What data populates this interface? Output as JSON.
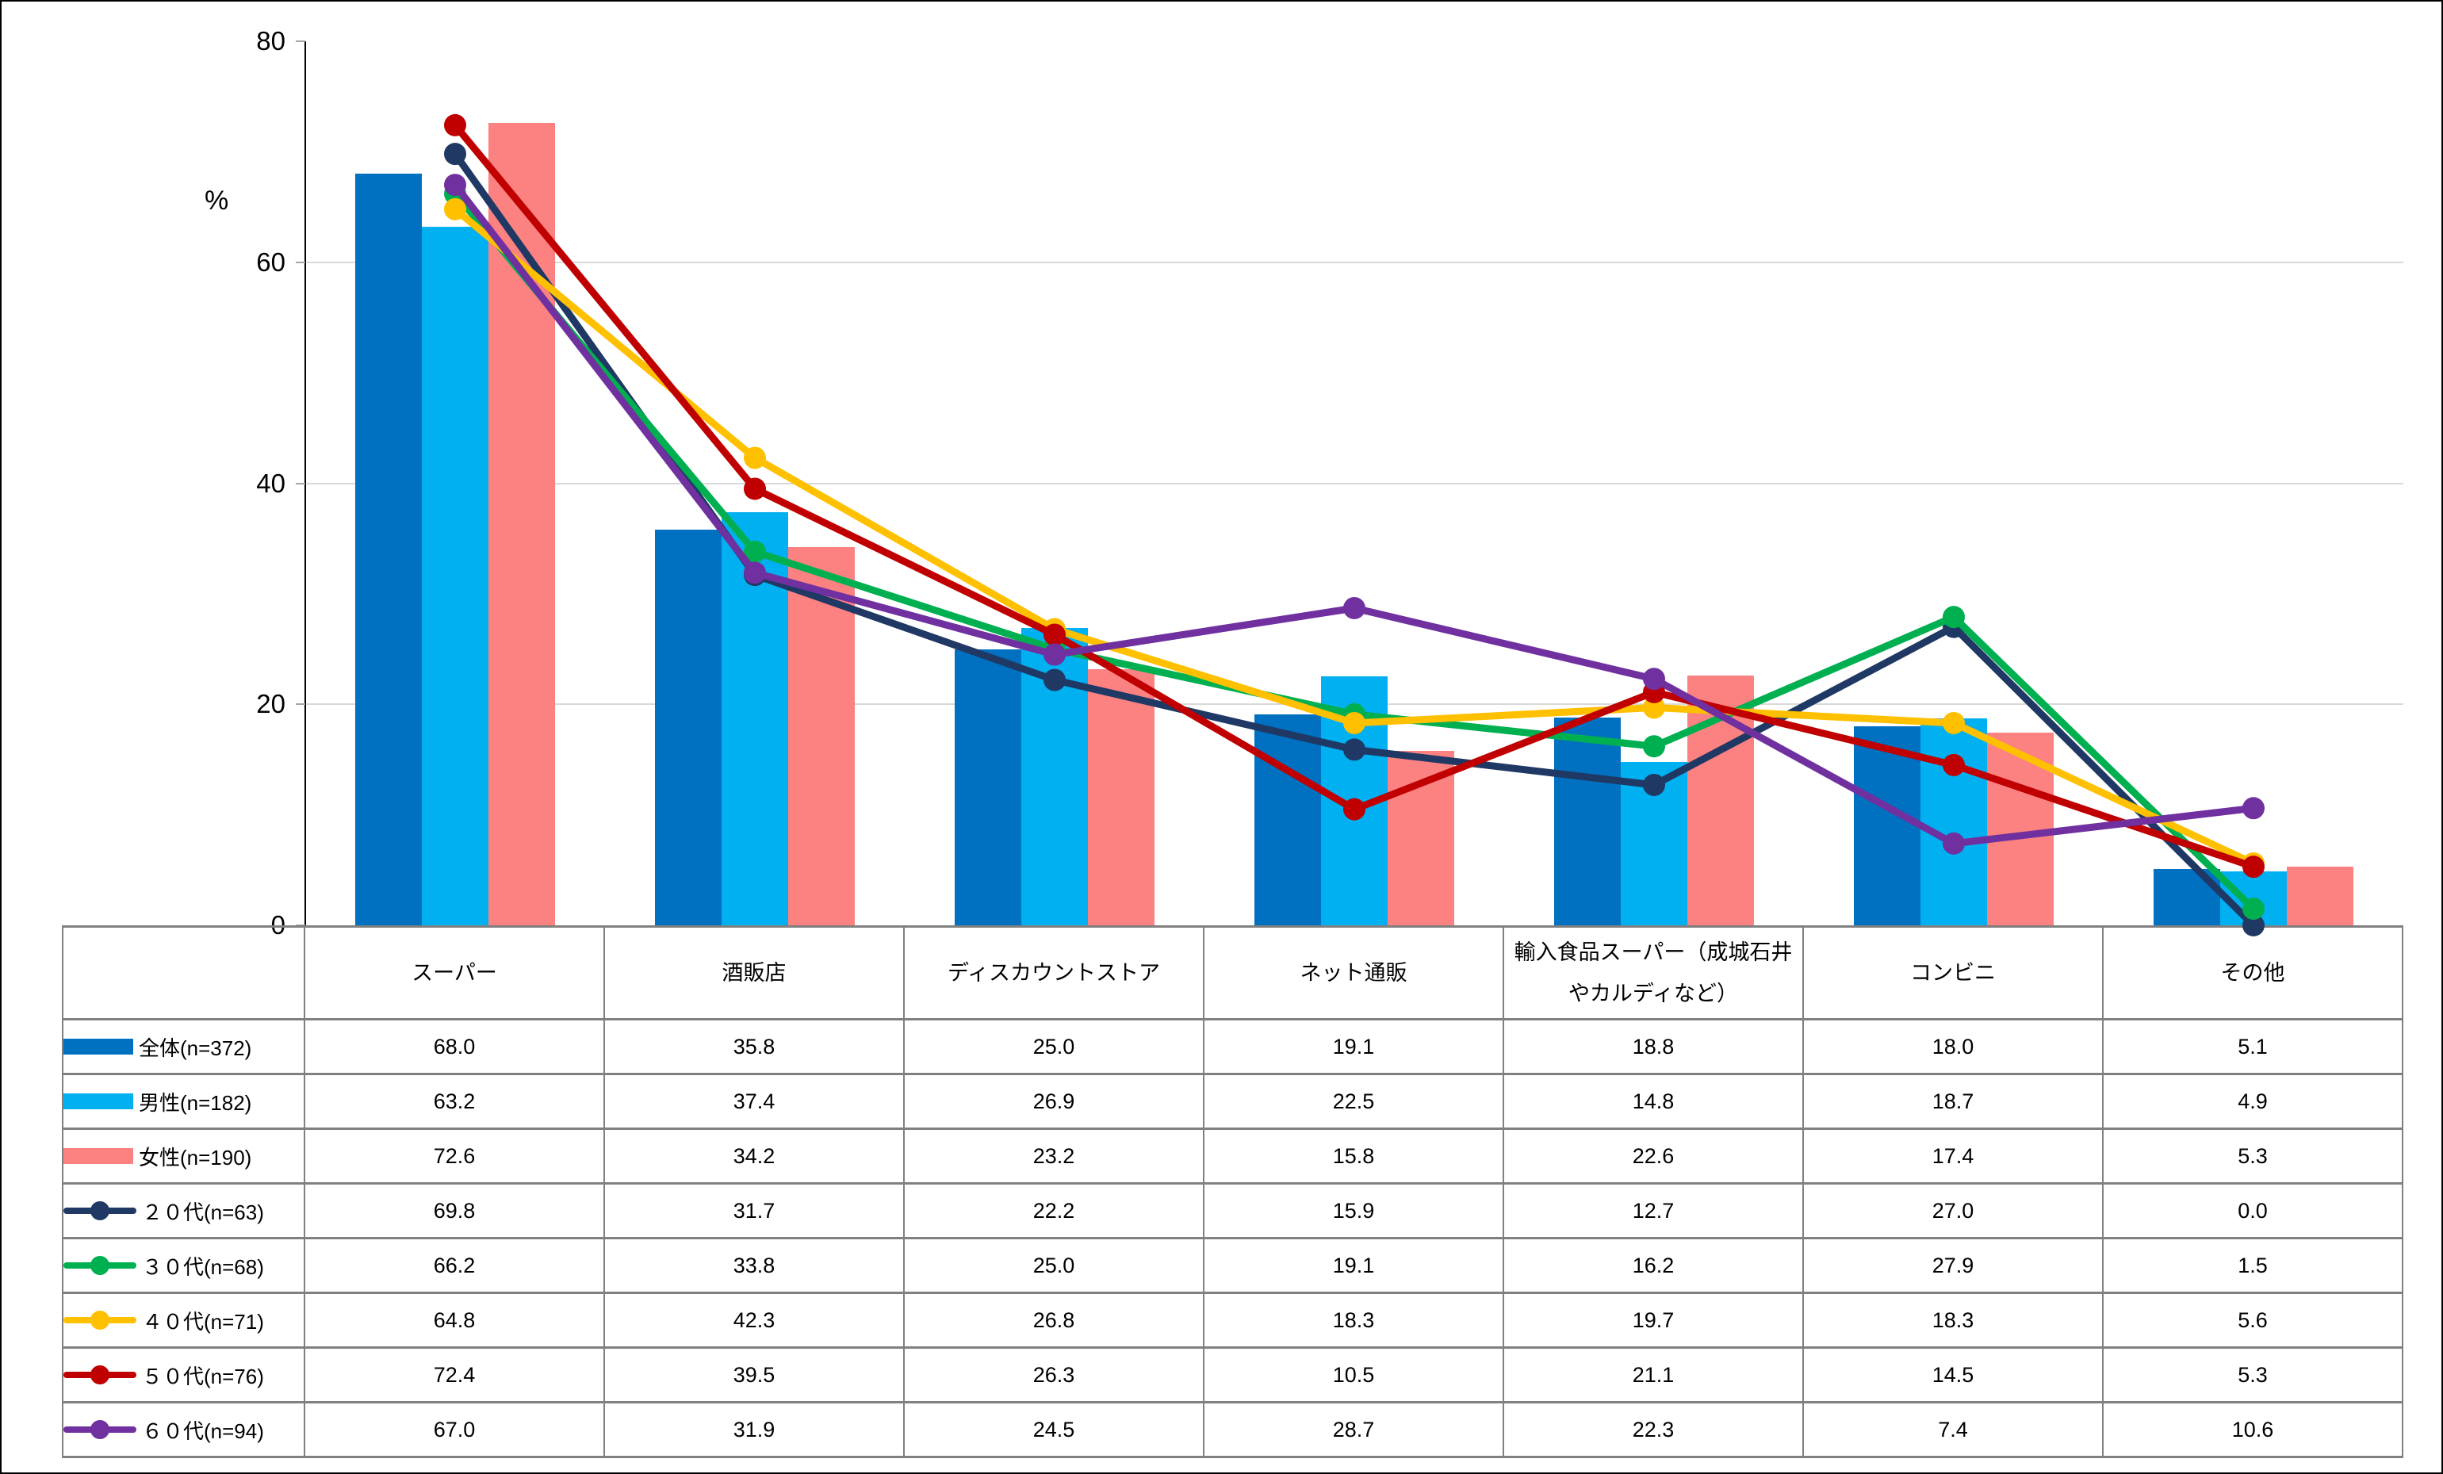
{
  "chart_data": {
    "type": "bar+line combo with data table",
    "categories": [
      "スーパー",
      "酒販店",
      "ディスカウントストア",
      "ネット通販",
      "輸入食品スーパー（成城石井やカルディなど）",
      "コンビニ",
      "その他"
    ],
    "bar_series": [
      {
        "name": "全体(n=372)",
        "color": "#0070C0",
        "values": [
          68.0,
          35.8,
          25.0,
          19.1,
          18.8,
          18.0,
          5.1
        ]
      },
      {
        "name": "男性(n=182)",
        "color": "#00B0F0",
        "values": [
          63.2,
          37.4,
          26.9,
          22.5,
          14.8,
          18.7,
          4.9
        ]
      },
      {
        "name": "女性(n=190)",
        "color": "#FC8181",
        "values": [
          72.6,
          34.2,
          23.2,
          15.8,
          22.6,
          17.4,
          5.3
        ]
      }
    ],
    "line_series": [
      {
        "name": "２０代(n=63)",
        "color": "#1F3864",
        "values": [
          69.8,
          31.7,
          22.2,
          15.9,
          12.7,
          27.0,
          0.0
        ]
      },
      {
        "name": "３０代(n=68)",
        "color": "#00B050",
        "values": [
          66.2,
          33.8,
          25.0,
          19.1,
          16.2,
          27.9,
          1.5
        ]
      },
      {
        "name": "４０代(n=71)",
        "color": "#FFC000",
        "values": [
          64.8,
          42.3,
          26.8,
          18.3,
          19.7,
          18.3,
          5.6
        ]
      },
      {
        "name": "５０代(n=76)",
        "color": "#C00000",
        "values": [
          72.4,
          39.5,
          26.3,
          10.5,
          21.1,
          14.5,
          5.3
        ]
      },
      {
        "name": "６０代(n=94)",
        "color": "#7030A0",
        "values": [
          67.0,
          31.9,
          24.5,
          28.7,
          22.3,
          7.4,
          10.6
        ]
      }
    ],
    "ylabel": "%",
    "yticks": [
      0,
      20,
      40,
      60,
      80
    ],
    "ylim": [
      0,
      80
    ],
    "grid": true,
    "legend_position": "table-left-column",
    "value_decimals": 1,
    "colors": {
      "gridline": "#d9d9d9",
      "axis": "#000000",
      "table_border": "#808080",
      "text": "#000000",
      "background": "#ffffff"
    }
  }
}
